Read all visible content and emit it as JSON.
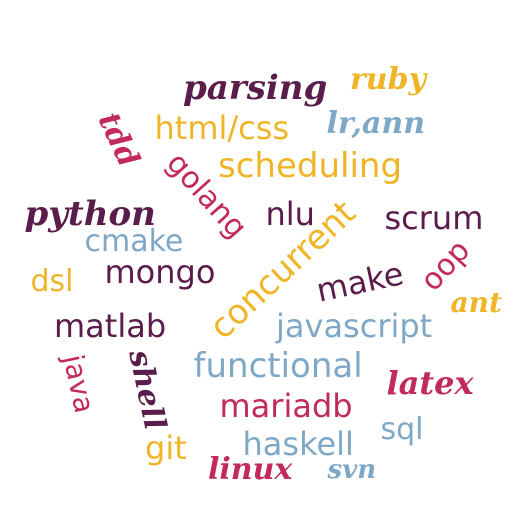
{
  "colors": {
    "purple": "#5a1c4a",
    "yellow": "#f0b526",
    "blue": "#7fa8c6",
    "crimson": "#c22a5a"
  },
  "words": [
    {
      "text": "parsing",
      "color": "purple",
      "style": "script"
    },
    {
      "text": "ruby",
      "color": "yellow",
      "style": "script"
    },
    {
      "text": "tdd",
      "color": "crimson",
      "style": "script"
    },
    {
      "text": "html/css",
      "color": "yellow",
      "style": "sans"
    },
    {
      "text": "lr,ann",
      "color": "blue",
      "style": "script"
    },
    {
      "text": "golang",
      "color": "crimson",
      "style": "sans"
    },
    {
      "text": "scheduling",
      "color": "yellow",
      "style": "sans"
    },
    {
      "text": "python",
      "color": "purple",
      "style": "script"
    },
    {
      "text": "nlu",
      "color": "purple",
      "style": "sans"
    },
    {
      "text": "scrum",
      "color": "purple",
      "style": "sans"
    },
    {
      "text": "cmake",
      "color": "blue",
      "style": "sans"
    },
    {
      "text": "concurrent",
      "color": "yellow",
      "style": "sans"
    },
    {
      "text": "dsl",
      "color": "yellow",
      "style": "sans"
    },
    {
      "text": "mongo",
      "color": "purple",
      "style": "sans"
    },
    {
      "text": "make",
      "color": "purple",
      "style": "sans"
    },
    {
      "text": "oop",
      "color": "crimson",
      "style": "sans"
    },
    {
      "text": "ant",
      "color": "yellow",
      "style": "script"
    },
    {
      "text": "matlab",
      "color": "purple",
      "style": "sans"
    },
    {
      "text": "javascript",
      "color": "blue",
      "style": "sans"
    },
    {
      "text": "java",
      "color": "crimson",
      "style": "sans"
    },
    {
      "text": "shell",
      "color": "purple",
      "style": "script"
    },
    {
      "text": "functional",
      "color": "blue",
      "style": "sans"
    },
    {
      "text": "latex",
      "color": "crimson",
      "style": "script"
    },
    {
      "text": "mariadb",
      "color": "crimson",
      "style": "sans"
    },
    {
      "text": "sql",
      "color": "blue",
      "style": "sans"
    },
    {
      "text": "git",
      "color": "yellow",
      "style": "sans"
    },
    {
      "text": "haskell",
      "color": "blue",
      "style": "sans"
    },
    {
      "text": "linux",
      "color": "crimson",
      "style": "script"
    },
    {
      "text": "svn",
      "color": "blue",
      "style": "script"
    }
  ]
}
